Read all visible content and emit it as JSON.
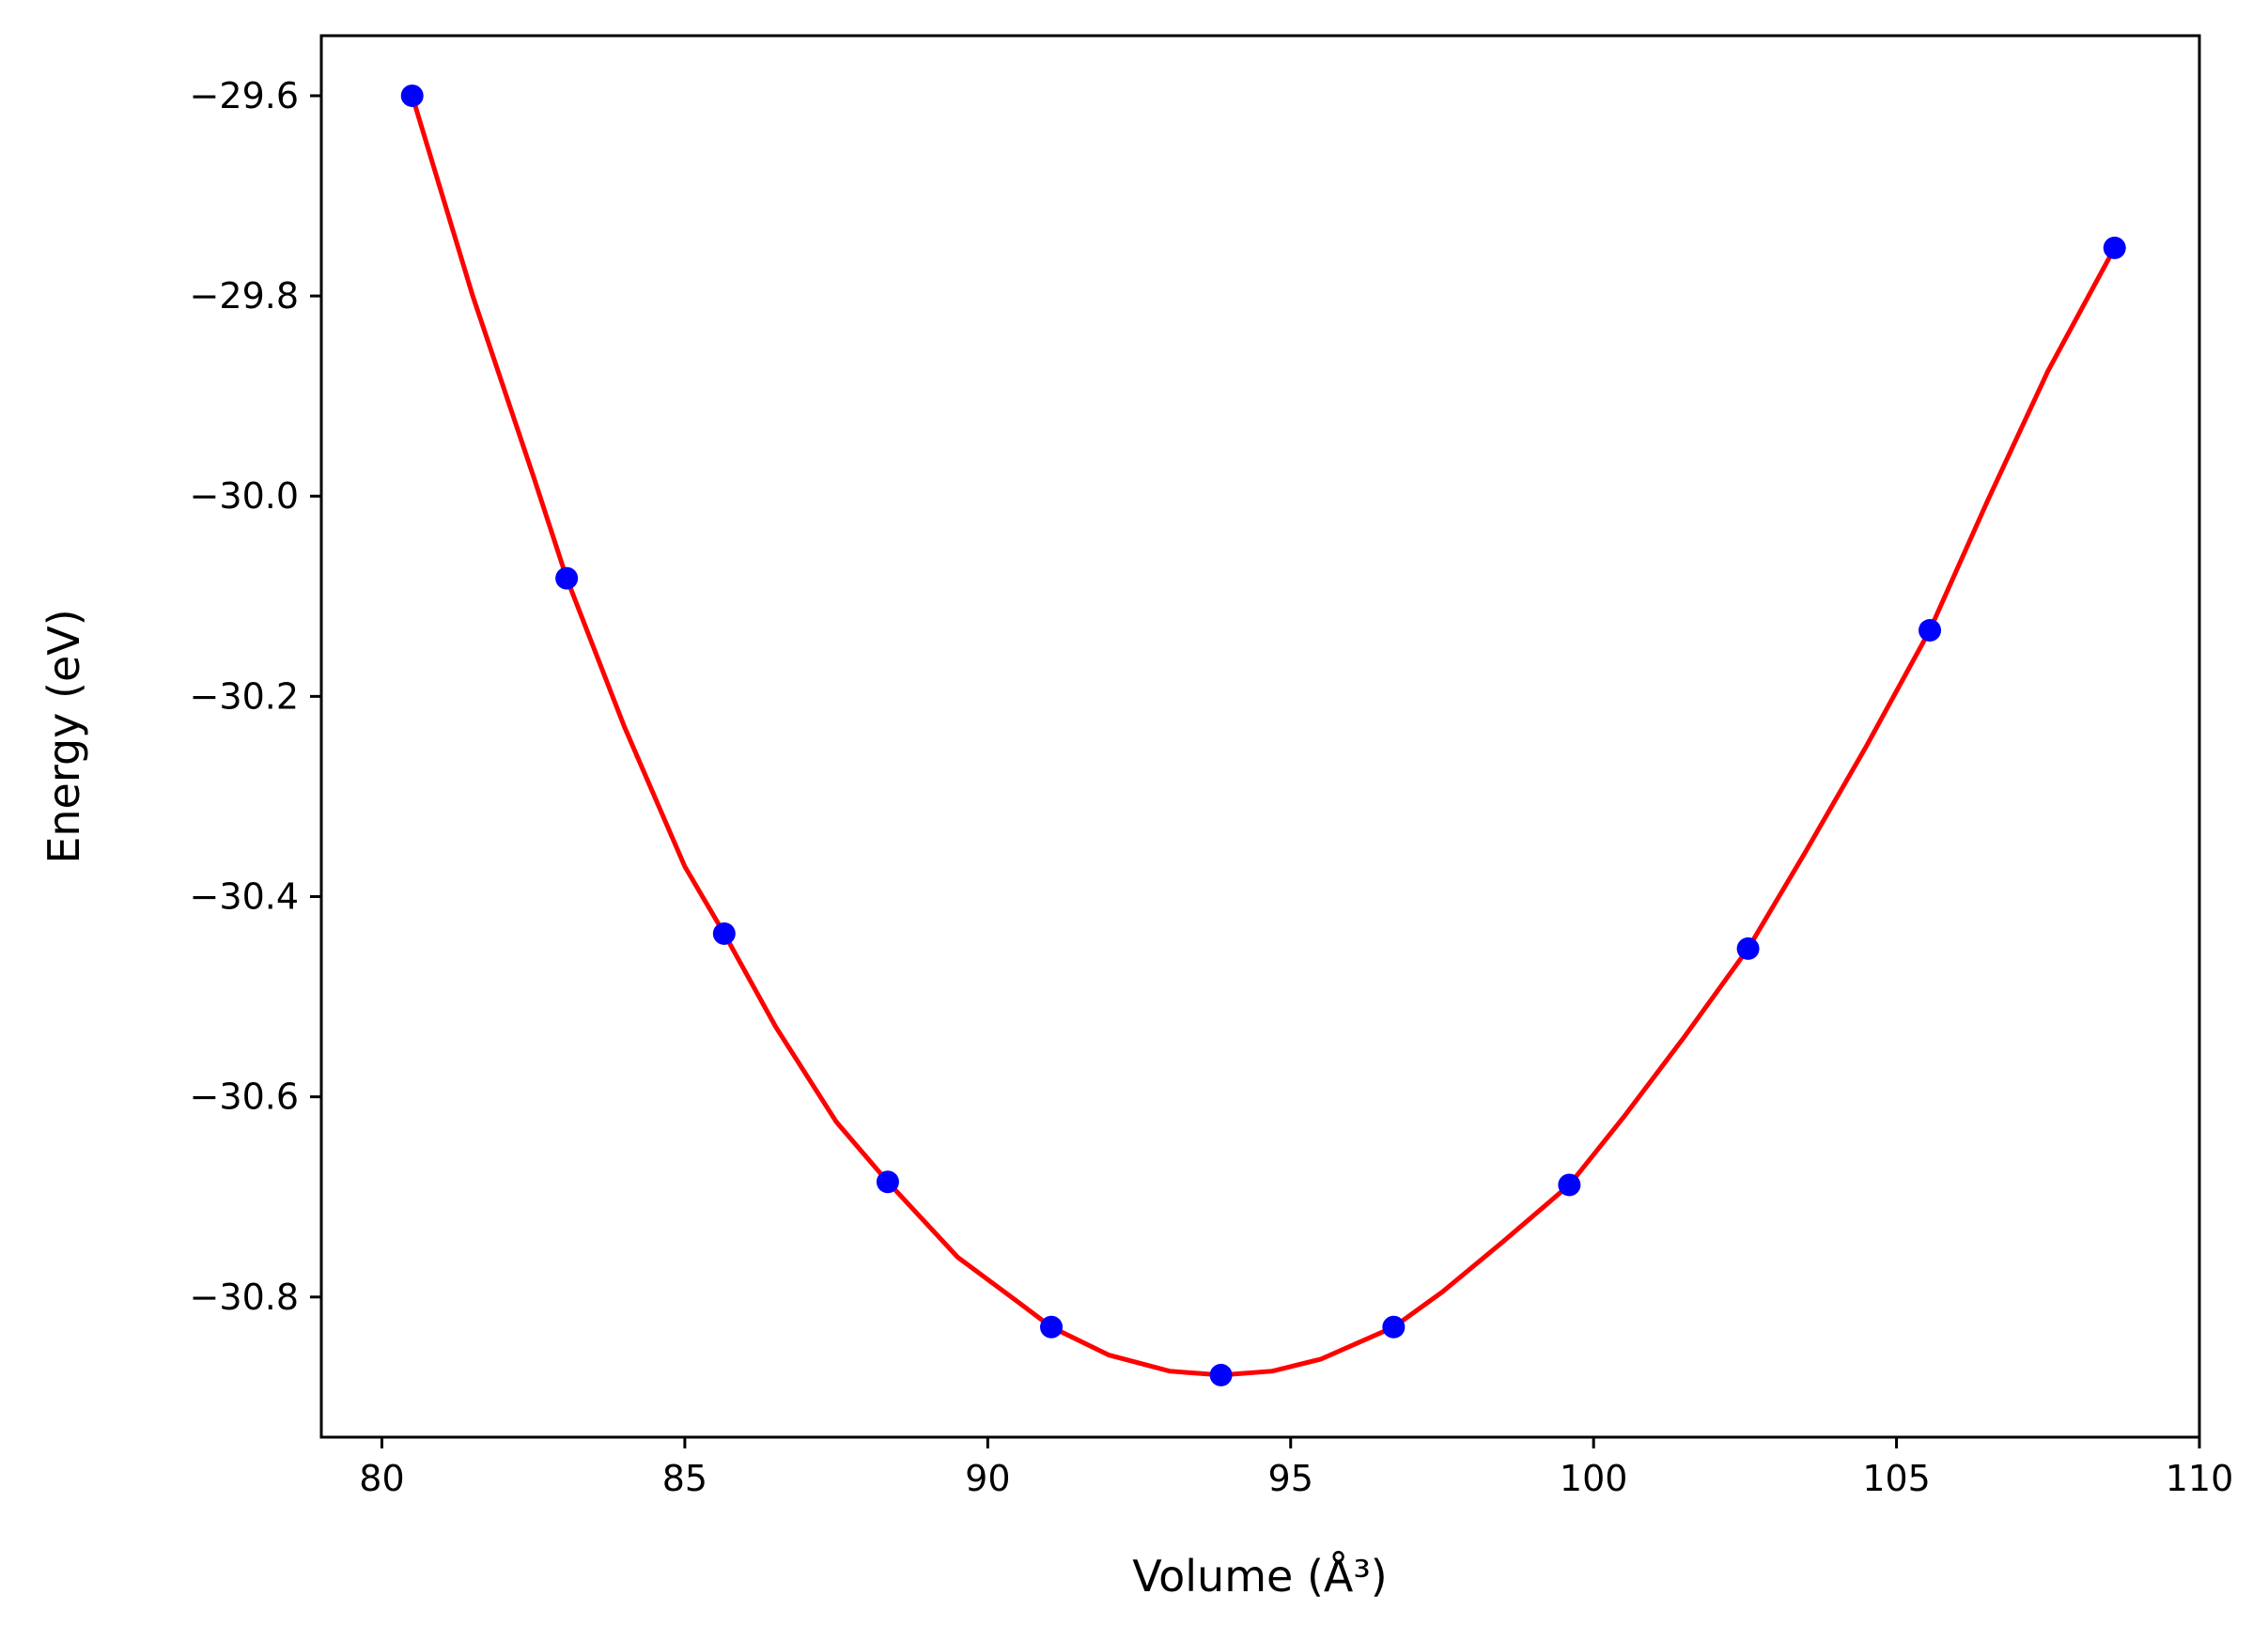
{
  "chart_data": {
    "type": "scatter",
    "title": "",
    "xlabel": "Volume (Å³)",
    "ylabel": "Energy (eV)",
    "xlim": [
      79.0,
      110.0
    ],
    "ylim": [
      -30.94,
      -29.54
    ],
    "x_ticks": [
      80,
      85,
      90,
      95,
      100,
      105,
      110
    ],
    "x_tick_labels": [
      "80",
      "85",
      "90",
      "95",
      "100",
      "105",
      "110"
    ],
    "y_ticks": [
      -29.6,
      -29.8,
      -30.0,
      -30.2,
      -30.4,
      -30.6,
      -30.8
    ],
    "y_tick_labels": [
      "−29.6",
      "−29.8",
      "−30.0",
      "−30.2",
      "−30.4",
      "−30.6",
      "−30.8"
    ],
    "grid": false,
    "series": [
      {
        "kind": "markers",
        "color": "#0000ff",
        "x": [
          80.5,
          83.05,
          85.65,
          88.35,
          91.05,
          93.85,
          96.7,
          99.6,
          102.55,
          105.55,
          108.6
        ],
        "y": [
          -29.6,
          -30.082,
          -30.437,
          -30.685,
          -30.83,
          -30.878,
          -30.83,
          -30.688,
          -30.452,
          -30.134,
          -29.752
        ]
      },
      {
        "kind": "fit-line",
        "color": "#ff0000",
        "x": [
          80.5,
          81.5,
          82.5,
          83.05,
          84.0,
          85.0,
          85.65,
          86.5,
          87.5,
          88.35,
          89.5,
          90.5,
          91.05,
          92.0,
          93.0,
          93.85,
          94.7,
          95.5,
          96.7,
          97.5,
          98.5,
          99.6,
          100.5,
          101.5,
          102.55,
          103.5,
          104.5,
          105.55,
          106.5,
          107.5,
          108.6
        ],
        "y": [
          -29.6,
          -29.8,
          -29.98,
          -30.082,
          -30.23,
          -30.37,
          -30.437,
          -30.53,
          -30.625,
          -30.685,
          -30.76,
          -30.805,
          -30.83,
          -30.858,
          -30.874,
          -30.878,
          -30.874,
          -30.862,
          -30.83,
          -30.795,
          -30.745,
          -30.688,
          -30.62,
          -30.54,
          -30.452,
          -30.355,
          -30.25,
          -30.134,
          -30.005,
          -29.875,
          -29.752
        ]
      }
    ]
  }
}
